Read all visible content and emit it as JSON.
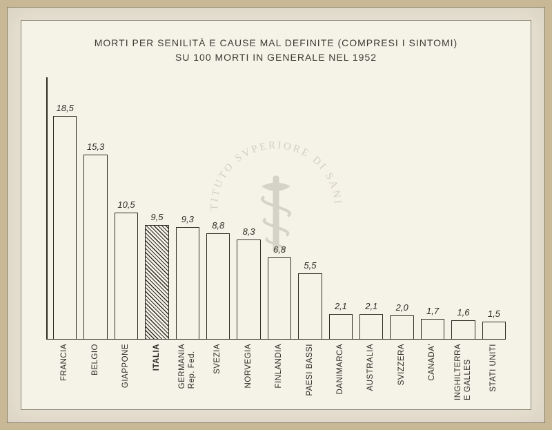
{
  "chart": {
    "type": "bar",
    "title_line1": "MORTI PER SENILITÀ E CAUSE MAL DEFINITE (COMPRESI I SINTOMI)",
    "title_line2": "SU 100 MORTI IN GENERALE NEL 1952",
    "y_max": 20,
    "bar_border_color": "#2e2b24",
    "bar_fill_color": "#f5f2e8",
    "background_color": "#f5f2e8",
    "axis_color": "#2e2b24",
    "value_fontsize": 13,
    "label_fontsize": 11.5,
    "title_fontsize": 14,
    "bars": [
      {
        "label": "FRANCIA",
        "value": 18.5,
        "value_text": "18,5",
        "highlight": false
      },
      {
        "label": "BELGIO",
        "value": 15.3,
        "value_text": "15,3",
        "highlight": false
      },
      {
        "label": "GIAPPONE",
        "value": 10.5,
        "value_text": "10,5",
        "highlight": false
      },
      {
        "label": "ITALIA",
        "value": 9.5,
        "value_text": "9,5",
        "highlight": true
      },
      {
        "label": "GERMANIA\nRep. Fed.",
        "value": 9.3,
        "value_text": "9,3",
        "highlight": false
      },
      {
        "label": "SVEZIA",
        "value": 8.8,
        "value_text": "8,8",
        "highlight": false
      },
      {
        "label": "NORVEGIA",
        "value": 8.3,
        "value_text": "8,3",
        "highlight": false
      },
      {
        "label": "FINLANDIA",
        "value": 6.8,
        "value_text": "6,8",
        "highlight": false
      },
      {
        "label": "PAESI BASSI",
        "value": 5.5,
        "value_text": "5,5",
        "highlight": false
      },
      {
        "label": "DANIMARCA",
        "value": 2.1,
        "value_text": "2,1",
        "highlight": false
      },
      {
        "label": "AUSTRALIA",
        "value": 2.1,
        "value_text": "2,1",
        "highlight": false
      },
      {
        "label": "SVIZZERA",
        "value": 2.0,
        "value_text": "2,0",
        "highlight": false
      },
      {
        "label": "CANADA'",
        "value": 1.7,
        "value_text": "1,7",
        "highlight": false
      },
      {
        "label": "INGHILTERRA\nE GALLES",
        "value": 1.6,
        "value_text": "1,6",
        "highlight": false
      },
      {
        "label": "STATI UNITI",
        "value": 1.5,
        "value_text": "1,5",
        "highlight": false
      }
    ]
  },
  "watermark": {
    "text_top": "ISTITUTO SVPERIORE DI SANITÀ",
    "icon": "caduceus",
    "color": "#6b6558"
  }
}
